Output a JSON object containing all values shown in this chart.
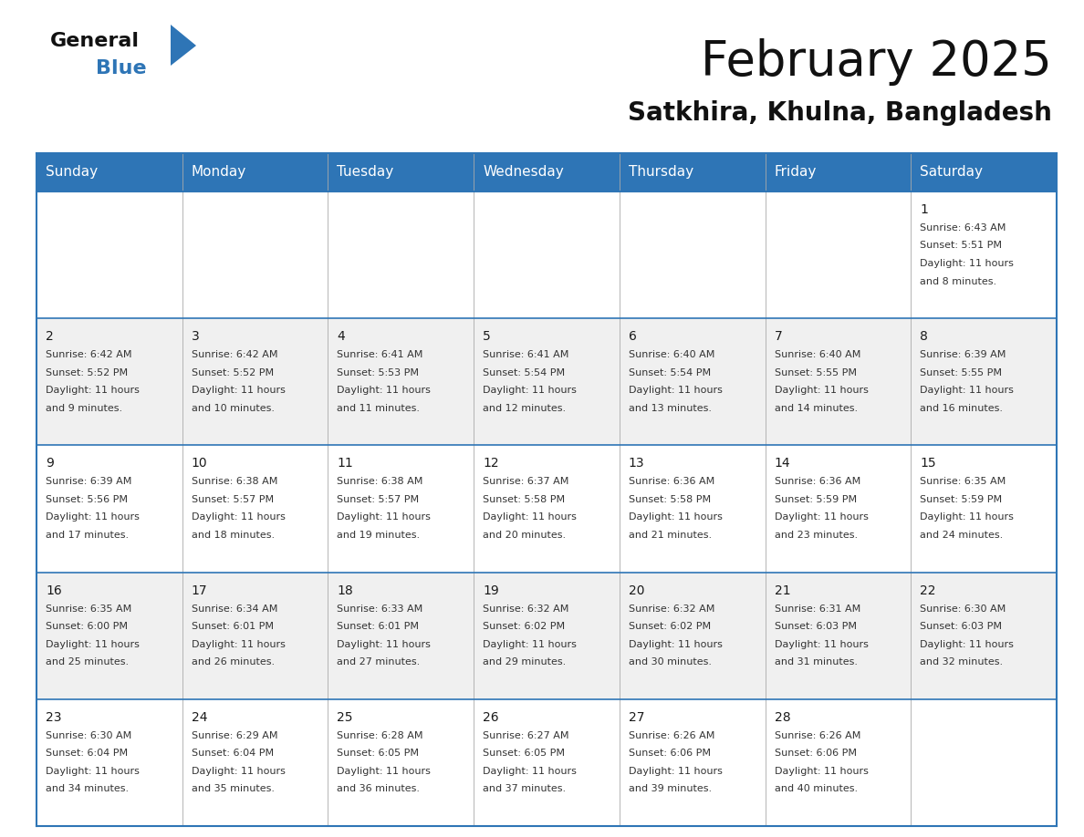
{
  "title": "February 2025",
  "subtitle": "Satkhira, Khulna, Bangladesh",
  "header_color": "#2E75B6",
  "header_text_color": "#FFFFFF",
  "cell_bg_white": "#FFFFFF",
  "cell_bg_gray": "#F0F0F0",
  "border_color": "#2E75B6",
  "grid_line_color": "#AAAAAA",
  "text_color": "#333333",
  "day_number_color": "#1a1a1a",
  "day_headers": [
    "Sunday",
    "Monday",
    "Tuesday",
    "Wednesday",
    "Thursday",
    "Friday",
    "Saturday"
  ],
  "logo_text_general": "General",
  "logo_text_blue": "Blue",
  "logo_blue": "#2E75B6",
  "title_fontsize": 38,
  "subtitle_fontsize": 20,
  "header_fontsize": 11,
  "day_num_fontsize": 10,
  "cell_fontsize": 8,
  "calendar_data": [
    [
      null,
      null,
      null,
      null,
      null,
      null,
      {
        "day": 1,
        "sunrise": "6:43 AM",
        "sunset": "5:51 PM",
        "daylight_hours": 11,
        "daylight_minutes": 8
      }
    ],
    [
      {
        "day": 2,
        "sunrise": "6:42 AM",
        "sunset": "5:52 PM",
        "daylight_hours": 11,
        "daylight_minutes": 9
      },
      {
        "day": 3,
        "sunrise": "6:42 AM",
        "sunset": "5:52 PM",
        "daylight_hours": 11,
        "daylight_minutes": 10
      },
      {
        "day": 4,
        "sunrise": "6:41 AM",
        "sunset": "5:53 PM",
        "daylight_hours": 11,
        "daylight_minutes": 11
      },
      {
        "day": 5,
        "sunrise": "6:41 AM",
        "sunset": "5:54 PM",
        "daylight_hours": 11,
        "daylight_minutes": 12
      },
      {
        "day": 6,
        "sunrise": "6:40 AM",
        "sunset": "5:54 PM",
        "daylight_hours": 11,
        "daylight_minutes": 13
      },
      {
        "day": 7,
        "sunrise": "6:40 AM",
        "sunset": "5:55 PM",
        "daylight_hours": 11,
        "daylight_minutes": 14
      },
      {
        "day": 8,
        "sunrise": "6:39 AM",
        "sunset": "5:55 PM",
        "daylight_hours": 11,
        "daylight_minutes": 16
      }
    ],
    [
      {
        "day": 9,
        "sunrise": "6:39 AM",
        "sunset": "5:56 PM",
        "daylight_hours": 11,
        "daylight_minutes": 17
      },
      {
        "day": 10,
        "sunrise": "6:38 AM",
        "sunset": "5:57 PM",
        "daylight_hours": 11,
        "daylight_minutes": 18
      },
      {
        "day": 11,
        "sunrise": "6:38 AM",
        "sunset": "5:57 PM",
        "daylight_hours": 11,
        "daylight_minutes": 19
      },
      {
        "day": 12,
        "sunrise": "6:37 AM",
        "sunset": "5:58 PM",
        "daylight_hours": 11,
        "daylight_minutes": 20
      },
      {
        "day": 13,
        "sunrise": "6:36 AM",
        "sunset": "5:58 PM",
        "daylight_hours": 11,
        "daylight_minutes": 21
      },
      {
        "day": 14,
        "sunrise": "6:36 AM",
        "sunset": "5:59 PM",
        "daylight_hours": 11,
        "daylight_minutes": 23
      },
      {
        "day": 15,
        "sunrise": "6:35 AM",
        "sunset": "5:59 PM",
        "daylight_hours": 11,
        "daylight_minutes": 24
      }
    ],
    [
      {
        "day": 16,
        "sunrise": "6:35 AM",
        "sunset": "6:00 PM",
        "daylight_hours": 11,
        "daylight_minutes": 25
      },
      {
        "day": 17,
        "sunrise": "6:34 AM",
        "sunset": "6:01 PM",
        "daylight_hours": 11,
        "daylight_minutes": 26
      },
      {
        "day": 18,
        "sunrise": "6:33 AM",
        "sunset": "6:01 PM",
        "daylight_hours": 11,
        "daylight_minutes": 27
      },
      {
        "day": 19,
        "sunrise": "6:32 AM",
        "sunset": "6:02 PM",
        "daylight_hours": 11,
        "daylight_minutes": 29
      },
      {
        "day": 20,
        "sunrise": "6:32 AM",
        "sunset": "6:02 PM",
        "daylight_hours": 11,
        "daylight_minutes": 30
      },
      {
        "day": 21,
        "sunrise": "6:31 AM",
        "sunset": "6:03 PM",
        "daylight_hours": 11,
        "daylight_minutes": 31
      },
      {
        "day": 22,
        "sunrise": "6:30 AM",
        "sunset": "6:03 PM",
        "daylight_hours": 11,
        "daylight_minutes": 32
      }
    ],
    [
      {
        "day": 23,
        "sunrise": "6:30 AM",
        "sunset": "6:04 PM",
        "daylight_hours": 11,
        "daylight_minutes": 34
      },
      {
        "day": 24,
        "sunrise": "6:29 AM",
        "sunset": "6:04 PM",
        "daylight_hours": 11,
        "daylight_minutes": 35
      },
      {
        "day": 25,
        "sunrise": "6:28 AM",
        "sunset": "6:05 PM",
        "daylight_hours": 11,
        "daylight_minutes": 36
      },
      {
        "day": 26,
        "sunrise": "6:27 AM",
        "sunset": "6:05 PM",
        "daylight_hours": 11,
        "daylight_minutes": 37
      },
      {
        "day": 27,
        "sunrise": "6:26 AM",
        "sunset": "6:06 PM",
        "daylight_hours": 11,
        "daylight_minutes": 39
      },
      {
        "day": 28,
        "sunrise": "6:26 AM",
        "sunset": "6:06 PM",
        "daylight_hours": 11,
        "daylight_minutes": 40
      },
      null
    ]
  ]
}
